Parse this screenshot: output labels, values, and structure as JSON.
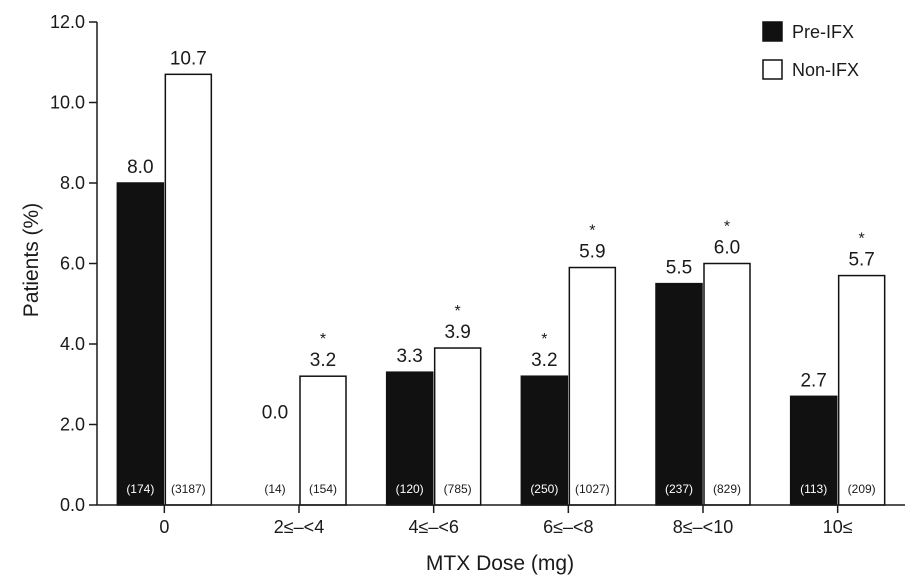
{
  "chart_data": {
    "type": "bar",
    "xlabel": "MTX Dose (mg)",
    "ylabel": "Patients (%)",
    "ylim": [
      0,
      12
    ],
    "yticks": [
      "0.0",
      "2.0",
      "4.0",
      "6.0",
      "8.0",
      "10.0",
      "12.0"
    ],
    "grid": false,
    "legend_position": "top-right",
    "categories": [
      "0",
      "2≤–<4",
      "4≤–<6",
      "6≤–<8",
      "8≤–<10",
      "10≤"
    ],
    "series": [
      {
        "name": "Pre-IFX",
        "color": "#111111",
        "values": [
          8.0,
          0.0,
          3.3,
          3.2,
          5.5,
          2.7
        ],
        "value_labels": [
          "8.0",
          "0.0",
          "3.3",
          "3.2",
          "5.5",
          "2.7"
        ],
        "n_labels": [
          "(174)",
          "(14)",
          "(120)",
          "(250)",
          "(237)",
          "(113)"
        ],
        "significant": [
          false,
          false,
          false,
          true,
          false,
          false
        ]
      },
      {
        "name": "Non-IFX",
        "color": "#ffffff",
        "values": [
          10.7,
          3.2,
          3.9,
          5.9,
          6.0,
          5.7
        ],
        "value_labels": [
          "10.7",
          "3.2",
          "3.9",
          "5.9",
          "6.0",
          "5.7"
        ],
        "n_labels": [
          "(3187)",
          "(154)",
          "(785)",
          "(1027)",
          "(829)",
          "(209)"
        ],
        "significant": [
          false,
          true,
          true,
          true,
          true,
          true
        ]
      }
    ],
    "significance_marker": "*"
  }
}
